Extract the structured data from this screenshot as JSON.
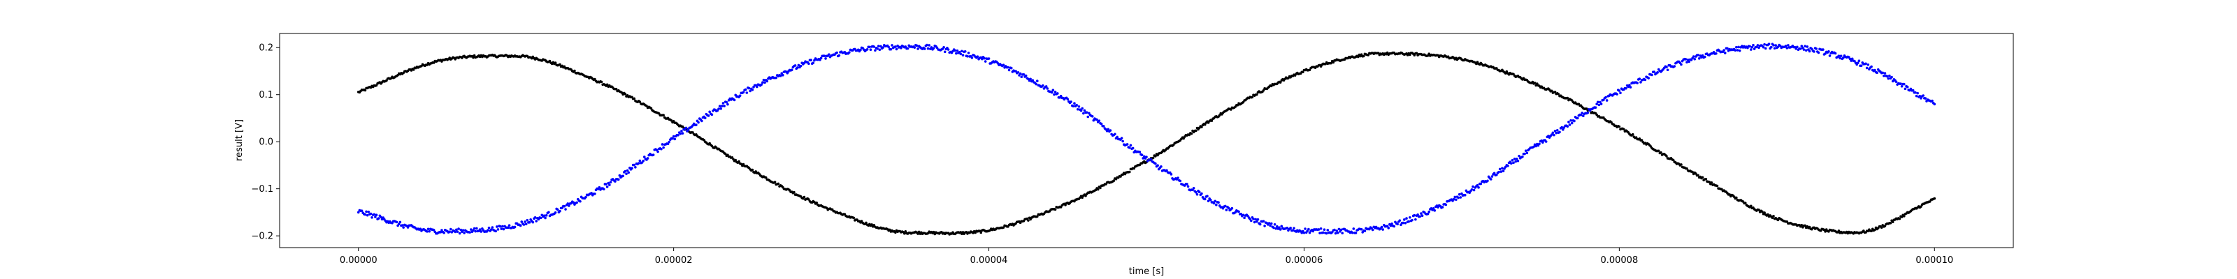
{
  "chart_data": {
    "type": "scatter",
    "title": "",
    "xlabel": "time [s]",
    "ylabel": "result [V]",
    "xlim": [
      -5e-06,
      0.000105
    ],
    "ylim": [
      -0.225,
      0.23
    ],
    "xticks": [
      0,
      2e-05,
      4e-05,
      6e-05,
      8e-05,
      0.0001
    ],
    "xtick_labels": [
      "0.00000",
      "0.00002",
      "0.00004",
      "0.00006",
      "0.00008",
      "0.00010"
    ],
    "yticks": [
      -0.2,
      -0.1,
      0.0,
      0.1,
      0.2
    ],
    "ytick_labels": [
      "−0.2",
      "−0.1",
      "0.0",
      "0.1",
      "0.2"
    ],
    "grid": false,
    "series": [
      {
        "color": "#000000",
        "marker": "dot",
        "x": [
          0,
          5e-06,
          1e-05,
          1.5e-05,
          2e-05,
          2.5e-05,
          3e-05,
          3.5e-05,
          4e-05,
          4.5e-05,
          5e-05,
          5.5e-05,
          6e-05,
          6.5e-05,
          7e-05,
          7.5e-05,
          8e-05,
          8.5e-05,
          9e-05,
          9.5e-05,
          0.0001
        ],
        "values": [
          0.105,
          0.171,
          0.182,
          0.131,
          0.042,
          -0.061,
          -0.145,
          -0.193,
          -0.188,
          -0.131,
          -0.041,
          0.064,
          0.15,
          0.187,
          0.175,
          0.118,
          0.03,
          -0.072,
          -0.163,
          -0.193,
          -0.122
        ]
      },
      {
        "color": "#0000ff",
        "marker": "dot",
        "x": [
          0,
          5e-06,
          1e-05,
          1.5e-05,
          2e-05,
          2.5e-05,
          3e-05,
          3.5e-05,
          4e-05,
          4.5e-05,
          5e-05,
          5.5e-05,
          6e-05,
          6.5e-05,
          7e-05,
          7.5e-05,
          8e-05,
          8.5e-05,
          9e-05,
          9.5e-05,
          0.0001
        ],
        "values": [
          -0.148,
          -0.19,
          -0.177,
          -0.107,
          0.007,
          0.115,
          0.183,
          0.202,
          0.172,
          0.087,
          -0.036,
          -0.14,
          -0.189,
          -0.182,
          -0.114,
          -0.003,
          0.107,
          0.18,
          0.203,
          0.17,
          0.08
        ]
      }
    ]
  }
}
